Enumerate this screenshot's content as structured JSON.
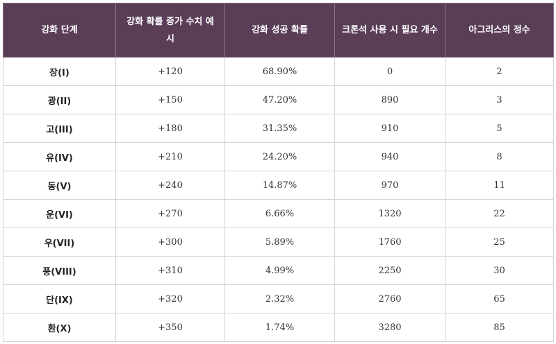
{
  "table": {
    "headers": [
      "강화 단계",
      "강화 확률 증가 수치 예시",
      "강화 성공 확률",
      "크론석 사용 시 필요 개수",
      "아그리스의 정수"
    ],
    "rows": [
      [
        "장(I)",
        "+120",
        "68.90%",
        "0",
        "2"
      ],
      [
        "광(II)",
        "+150",
        "47.20%",
        "890",
        "3"
      ],
      [
        "고(III)",
        "+180",
        "31.35%",
        "910",
        "5"
      ],
      [
        "유(IV)",
        "+210",
        "24.20%",
        "940",
        "8"
      ],
      [
        "동(V)",
        "+240",
        "14.87%",
        "970",
        "11"
      ],
      [
        "운(VI)",
        "+270",
        "6.66%",
        "1320",
        "22"
      ],
      [
        "우(VII)",
        "+300",
        "5.89%",
        "1760",
        "25"
      ],
      [
        "풍(VIII)",
        "+310",
        "4.99%",
        "2250",
        "30"
      ],
      [
        "단(IX)",
        "+320",
        "2.32%",
        "2760",
        "65"
      ],
      [
        "환(X)",
        "+350",
        "1.74%",
        "3280",
        "85"
      ]
    ]
  },
  "colors": {
    "header_bg": "#5a3e58",
    "header_text": "#ffffff",
    "border": "#d4d4d4"
  }
}
